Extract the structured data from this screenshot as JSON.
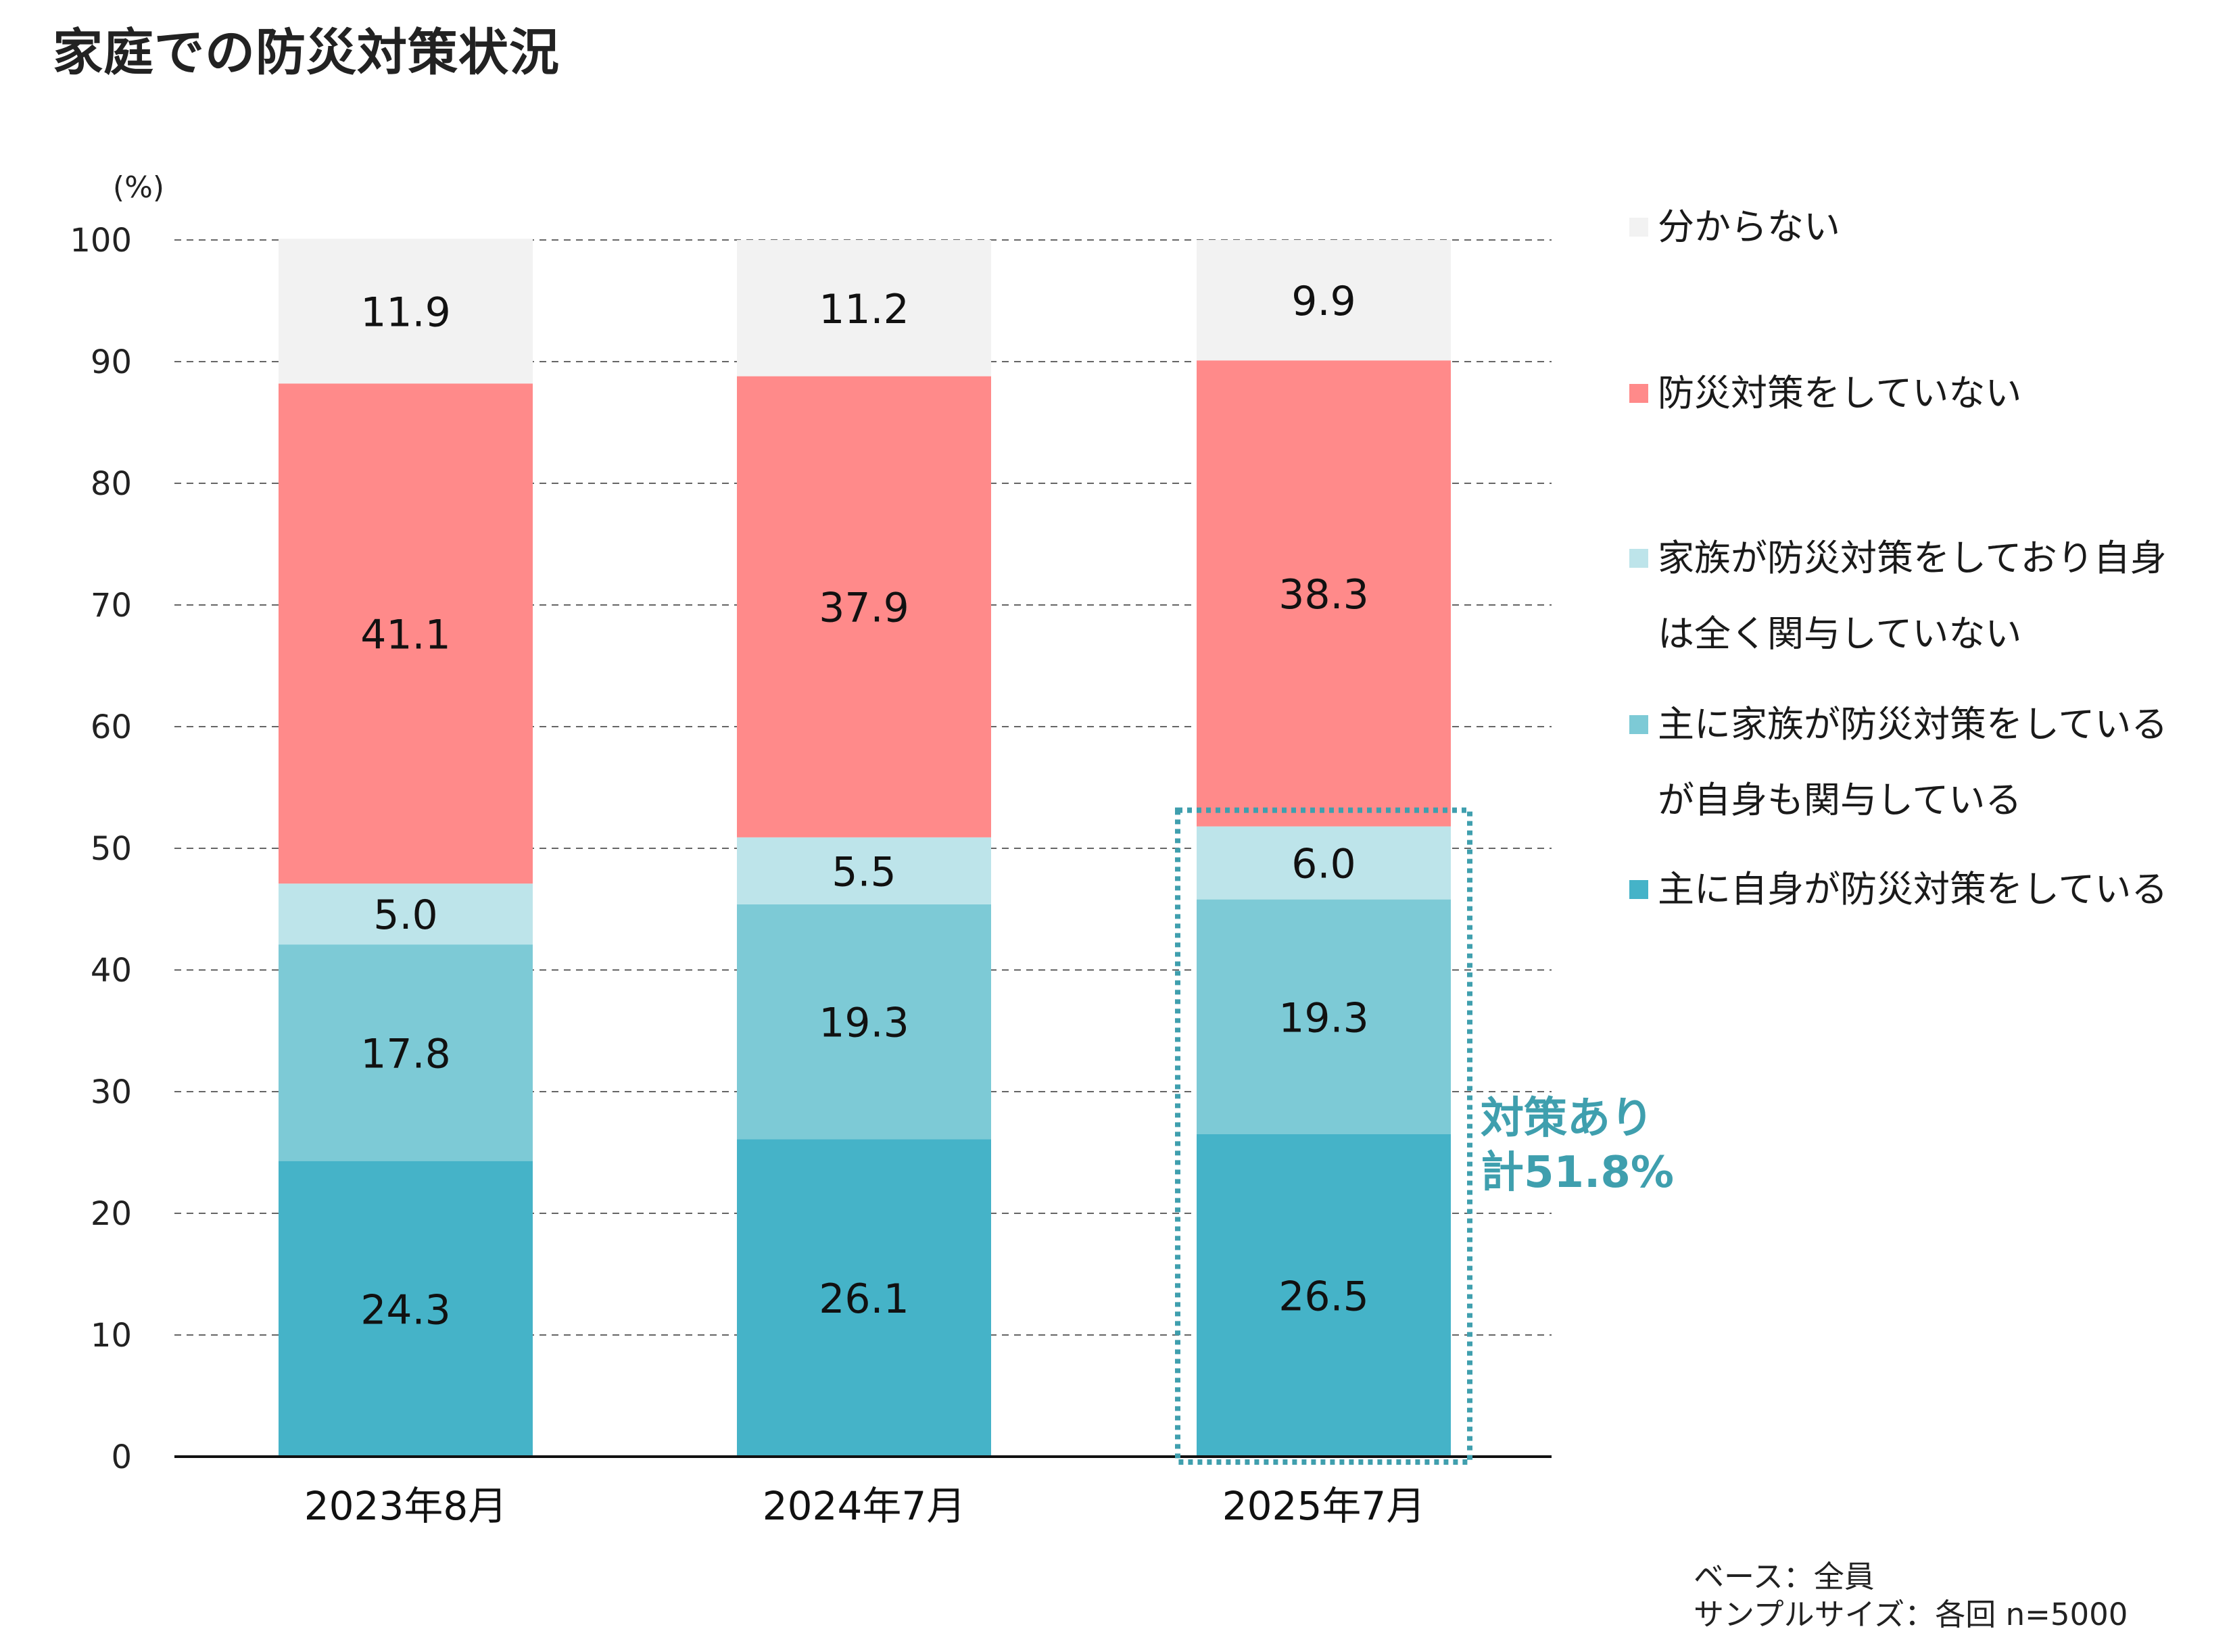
{
  "title": "家庭での防災対策状況",
  "chart_data": {
    "type": "bar",
    "stacked": true,
    "unit_label": "(%)",
    "ylim": [
      0,
      100
    ],
    "yticks": [
      0,
      10,
      20,
      30,
      40,
      50,
      60,
      70,
      80,
      90,
      100
    ],
    "grid": true,
    "categories": [
      "2023年8月",
      "2024年7月",
      "2025年7月"
    ],
    "series": [
      {
        "name": "主に自身が防災対策をしている",
        "color": "#45b3c8",
        "values": [
          24.3,
          26.1,
          26.5
        ]
      },
      {
        "name": "主に家族が防災対策をしているが自身も関与している",
        "color": "#7dcad6",
        "values": [
          17.8,
          19.3,
          19.3
        ]
      },
      {
        "name": "家族が防災対策をしており自身は全く関与していない",
        "color": "#bde4ea",
        "values": [
          5.0,
          5.5,
          6.0
        ]
      },
      {
        "name": "防災対策をしていない",
        "color": "#ff8a8a",
        "values": [
          41.1,
          37.9,
          38.3
        ]
      },
      {
        "name": "分からない",
        "color": "#f2f2f2",
        "values": [
          11.9,
          11.2,
          9.9
        ]
      }
    ],
    "value_labels": [
      [
        "24.3",
        "17.8",
        "5.0",
        "41.1",
        "11.9"
      ],
      [
        "26.1",
        "19.3",
        "5.5",
        "37.9",
        "11.2"
      ],
      [
        "26.5",
        "19.3",
        "6.0",
        "38.3",
        "9.9"
      ]
    ],
    "highlight": {
      "category": "2025年7月",
      "label_line1": "対策あり",
      "label_line2": "計51.8%",
      "color": "#3f9fae"
    }
  },
  "legend": {
    "items": [
      {
        "label": "分からない",
        "color": "#f2f2f2"
      },
      {
        "label": "防災対策をしていない",
        "color": "#ff8a8a"
      },
      {
        "label": "家族が防災対策をしており自身は全く関与していない",
        "color": "#bde4ea"
      },
      {
        "label": "主に家族が防災対策をしているが自身も関与している",
        "color": "#7dcad6"
      },
      {
        "label": "主に自身が防災対策をしている",
        "color": "#45b3c8"
      }
    ]
  },
  "footnote": {
    "base": "ベース：全員",
    "sample": "サンプルサイズ：各回 n=5000"
  }
}
